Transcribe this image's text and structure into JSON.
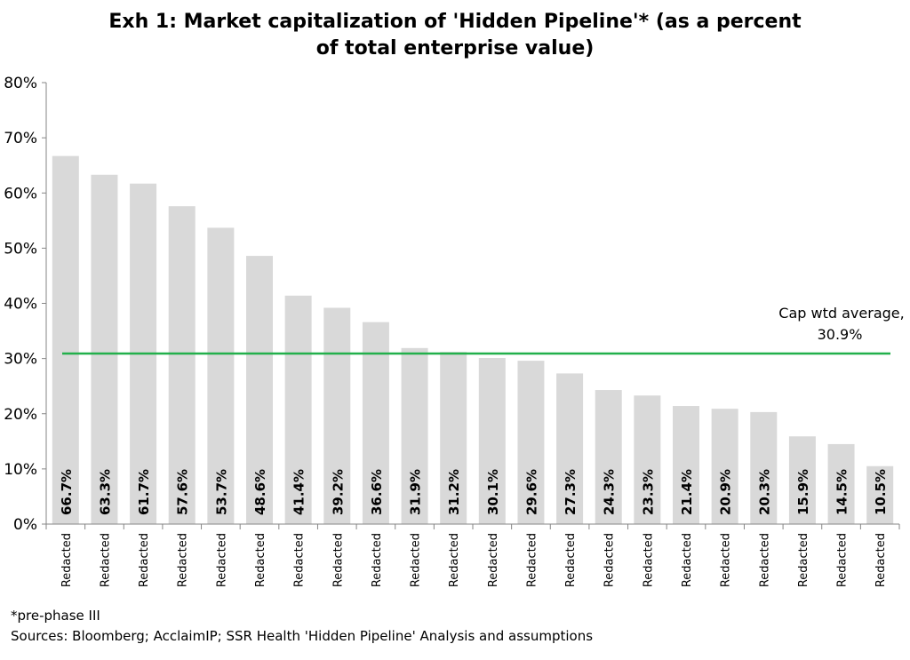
{
  "chart_data": {
    "type": "bar",
    "title_line1": "Exh 1: Market capitalization of 'Hidden Pipeline'* (as a percent",
    "title_line2": "of total enterprise value)",
    "categories": [
      "Redacted",
      "Redacted",
      "Redacted",
      "Redacted",
      "Redacted",
      "Redacted",
      "Redacted",
      "Redacted",
      "Redacted",
      "Redacted",
      "Redacted",
      "Redacted",
      "Redacted",
      "Redacted",
      "Redacted",
      "Redacted",
      "Redacted",
      "Redacted",
      "Redacted",
      "Redacted",
      "Redacted",
      "Redacted"
    ],
    "values": [
      66.7,
      63.3,
      61.7,
      57.6,
      53.7,
      48.6,
      41.4,
      39.2,
      36.6,
      31.9,
      31.2,
      30.1,
      29.6,
      27.3,
      24.3,
      23.3,
      21.4,
      20.9,
      20.3,
      15.9,
      14.5,
      10.5
    ],
    "data_labels": [
      "66.7%",
      "63.3%",
      "61.7%",
      "57.6%",
      "53.7%",
      "48.6%",
      "41.4%",
      "39.2%",
      "36.6%",
      "31.9%",
      "31.2%",
      "30.1%",
      "29.6%",
      "27.3%",
      "24.3%",
      "23.3%",
      "21.4%",
      "20.9%",
      "20.3%",
      "15.9%",
      "14.5%",
      "10.5%"
    ],
    "yticks": [
      "0%",
      "10%",
      "20%",
      "30%",
      "40%",
      "50%",
      "60%",
      "70%",
      "80%"
    ],
    "ylim": [
      0,
      80
    ],
    "reference_line": {
      "value": 30.9,
      "label_line1": "Cap wtd average,",
      "label_line2": "30.9%",
      "color": "#22b04b"
    },
    "bar_color": "#d9d9d9",
    "grid": false
  },
  "footnotes": {
    "note": "*pre-phase III",
    "sources": "Sources: Bloomberg; AcclaimIP; SSR Health 'Hidden Pipeline' Analysis and assumptions"
  }
}
